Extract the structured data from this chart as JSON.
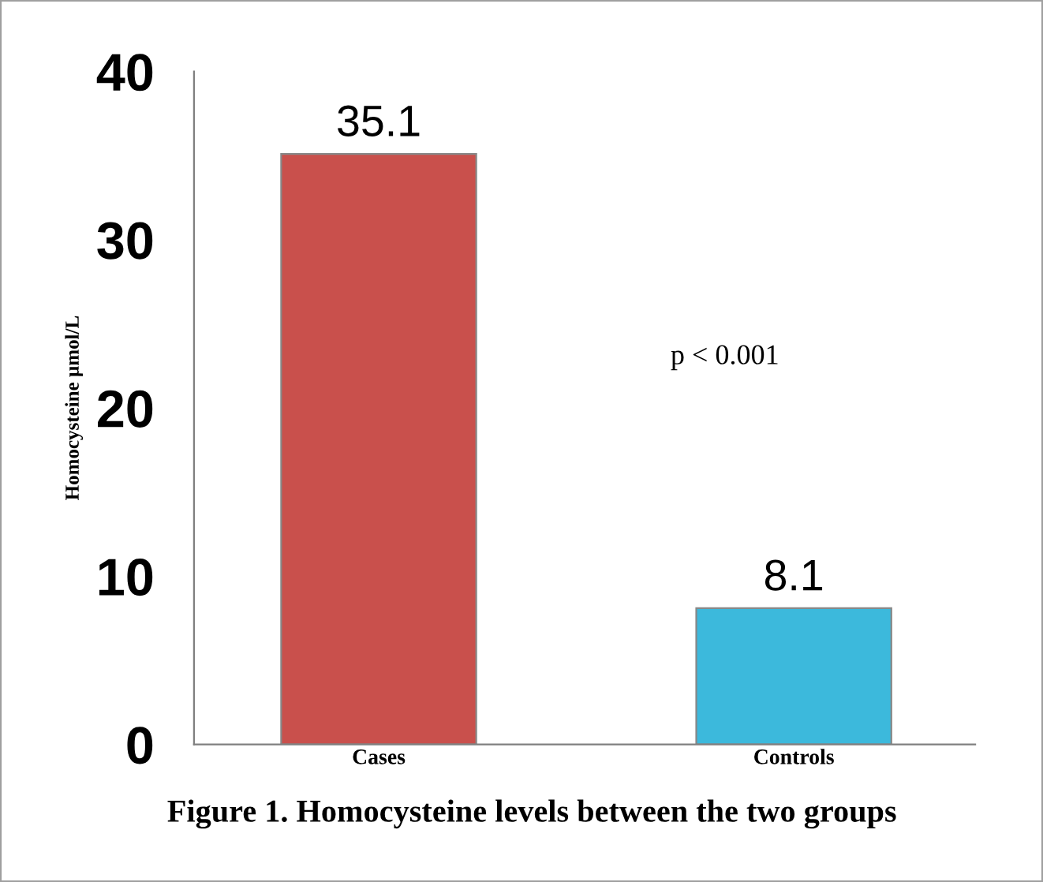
{
  "chart_data": {
    "type": "bar",
    "title": "Figure 1. Homocysteine levels between the two groups",
    "ylabel": "Homocysteine µmol/L",
    "categories": [
      "Cases",
      "Controls"
    ],
    "values": [
      35.1,
      8.1
    ],
    "colors": [
      "#c9504c",
      "#3cb9dc"
    ],
    "ylim": [
      0,
      40
    ],
    "yticks": [
      0,
      10,
      20,
      30,
      40
    ],
    "data_labels": true,
    "grid": false,
    "legend": false,
    "annotations": [
      "p < 0.001"
    ]
  }
}
